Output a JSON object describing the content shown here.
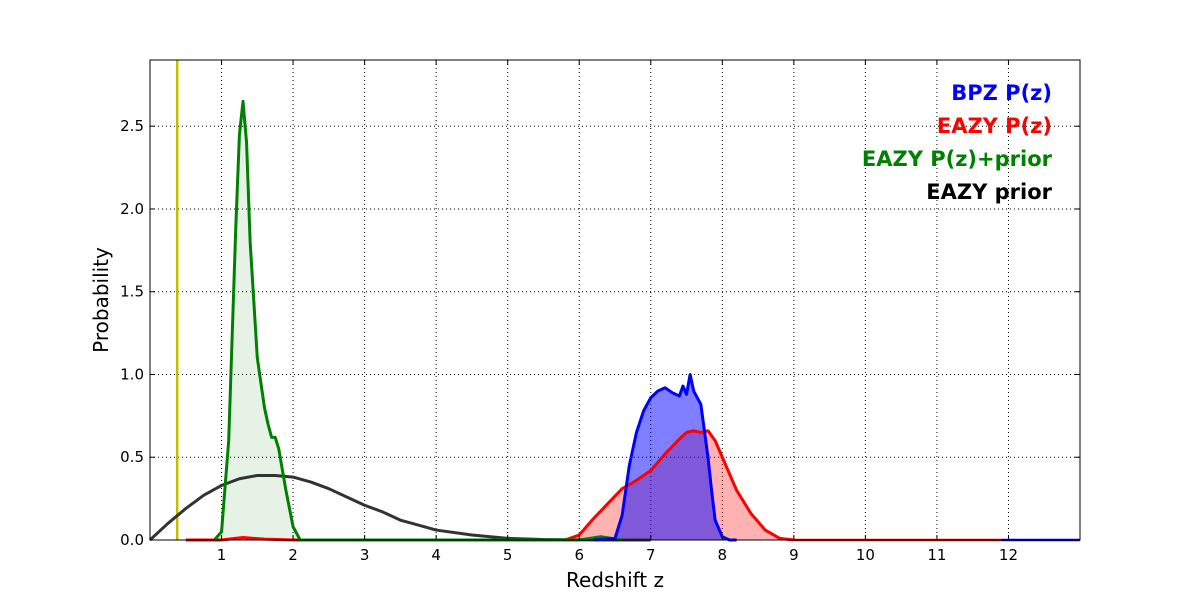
{
  "chart_data": {
    "type": "line",
    "title": "",
    "xlabel": "Redshift z",
    "ylabel": "Probability",
    "xlim": [
      0,
      13
    ],
    "ylim": [
      0,
      2.9
    ],
    "xticks": [
      "1",
      "2",
      "3",
      "4",
      "5",
      "6",
      "7",
      "8",
      "9",
      "10",
      "11",
      "12"
    ],
    "yticks": [
      "0.0",
      "0.5",
      "1.0",
      "1.5",
      "2.0",
      "2.5"
    ],
    "grid": true,
    "legend_placement": "top-right",
    "vertical_line": {
      "x": 0.38,
      "color": "#bfbf00"
    },
    "series": [
      {
        "name": "BPZ P(z)",
        "color": "#0000ff",
        "fill": "#0000ff",
        "fill_opacity": 0.5,
        "x": [
          6.2,
          6.5,
          6.6,
          6.7,
          6.8,
          6.9,
          7.0,
          7.1,
          7.2,
          7.3,
          7.4,
          7.45,
          7.5,
          7.55,
          7.6,
          7.7,
          7.8,
          7.85,
          7.9,
          8.0,
          8.1,
          8.2
        ],
        "y": [
          0.0,
          0.01,
          0.15,
          0.45,
          0.65,
          0.78,
          0.86,
          0.9,
          0.92,
          0.89,
          0.87,
          0.93,
          0.88,
          1.0,
          0.9,
          0.82,
          0.5,
          0.3,
          0.12,
          0.02,
          0.0,
          0.0
        ]
      },
      {
        "name": "EAZY P(z)",
        "color": "#ff0000",
        "fill": "#ff0000",
        "fill_opacity": 0.3,
        "x": [
          0.5,
          1.0,
          1.3,
          1.6,
          2.0,
          5.8,
          6.0,
          6.2,
          6.4,
          6.6,
          6.8,
          7.0,
          7.2,
          7.4,
          7.5,
          7.6,
          7.7,
          7.8,
          7.9,
          8.0,
          8.2,
          8.4,
          8.6,
          8.8,
          9.0
        ],
        "y": [
          0.0,
          0.0,
          0.015,
          0.005,
          0.0,
          0.0,
          0.03,
          0.13,
          0.22,
          0.31,
          0.36,
          0.42,
          0.52,
          0.61,
          0.65,
          0.66,
          0.65,
          0.66,
          0.6,
          0.5,
          0.3,
          0.16,
          0.06,
          0.01,
          0.0
        ]
      },
      {
        "name": "EAZY P(z)+prior",
        "color": "#008000",
        "fill": "#008000",
        "fill_opacity": 0.1,
        "x": [
          0.9,
          1.0,
          1.1,
          1.2,
          1.25,
          1.3,
          1.35,
          1.4,
          1.5,
          1.6,
          1.65,
          1.7,
          1.75,
          1.8,
          1.9,
          2.0,
          2.1,
          6.0,
          6.3,
          6.6
        ],
        "y": [
          0.0,
          0.05,
          0.6,
          1.9,
          2.45,
          2.65,
          2.4,
          1.8,
          1.1,
          0.8,
          0.7,
          0.62,
          0.62,
          0.55,
          0.3,
          0.08,
          0.0,
          0.0,
          0.02,
          0.0
        ]
      },
      {
        "name": "EAZY prior",
        "color": "#333333",
        "fill": "none",
        "fill_opacity": 0,
        "x": [
          0.0,
          0.25,
          0.5,
          0.75,
          1.0,
          1.25,
          1.5,
          1.75,
          2.0,
          2.25,
          2.5,
          2.75,
          3.0,
          3.25,
          3.5,
          3.75,
          4.0,
          4.5,
          5.0,
          5.5,
          6.0,
          6.5,
          7.0
        ],
        "y": [
          0.0,
          0.1,
          0.19,
          0.27,
          0.33,
          0.37,
          0.39,
          0.39,
          0.38,
          0.35,
          0.31,
          0.26,
          0.21,
          0.17,
          0.12,
          0.09,
          0.06,
          0.03,
          0.01,
          0.003,
          0.001,
          0.0,
          0.0
        ]
      }
    ]
  }
}
